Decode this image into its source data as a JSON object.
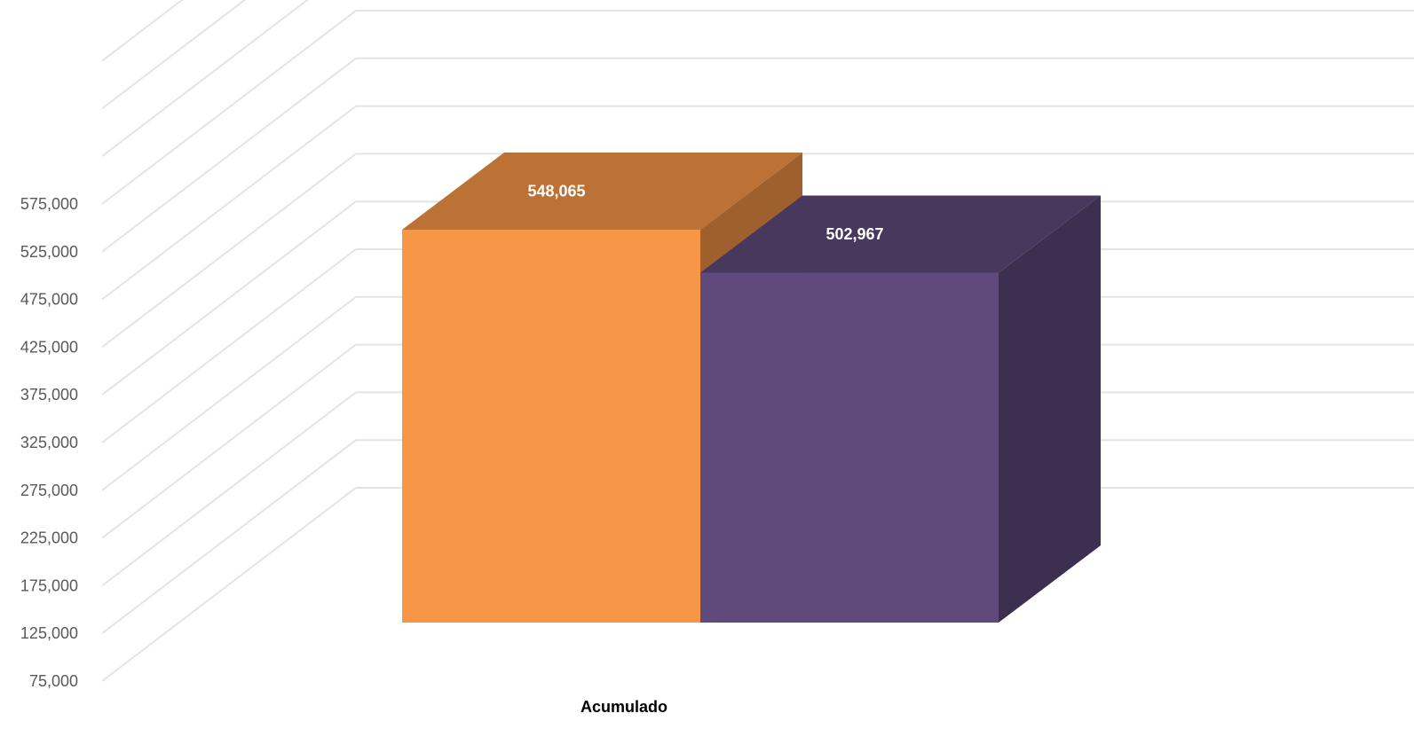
{
  "chart_data": {
    "type": "bar",
    "style": "3d-clustered-column",
    "categories": [
      "Acumulado"
    ],
    "series": [
      {
        "values": [
          548065
        ],
        "color": "#F79646",
        "value_label": "548,065"
      },
      {
        "values": [
          502967
        ],
        "color": "#604A7B",
        "value_label": "502,967"
      }
    ],
    "y_ticks": [
      "75,000",
      "125,000",
      "175,000",
      "225,000",
      "275,000",
      "325,000",
      "375,000",
      "425,000",
      "475,000",
      "525,000",
      "575,000"
    ],
    "ylim": [
      75000,
      575000
    ],
    "grid": true,
    "legend": "none"
  }
}
